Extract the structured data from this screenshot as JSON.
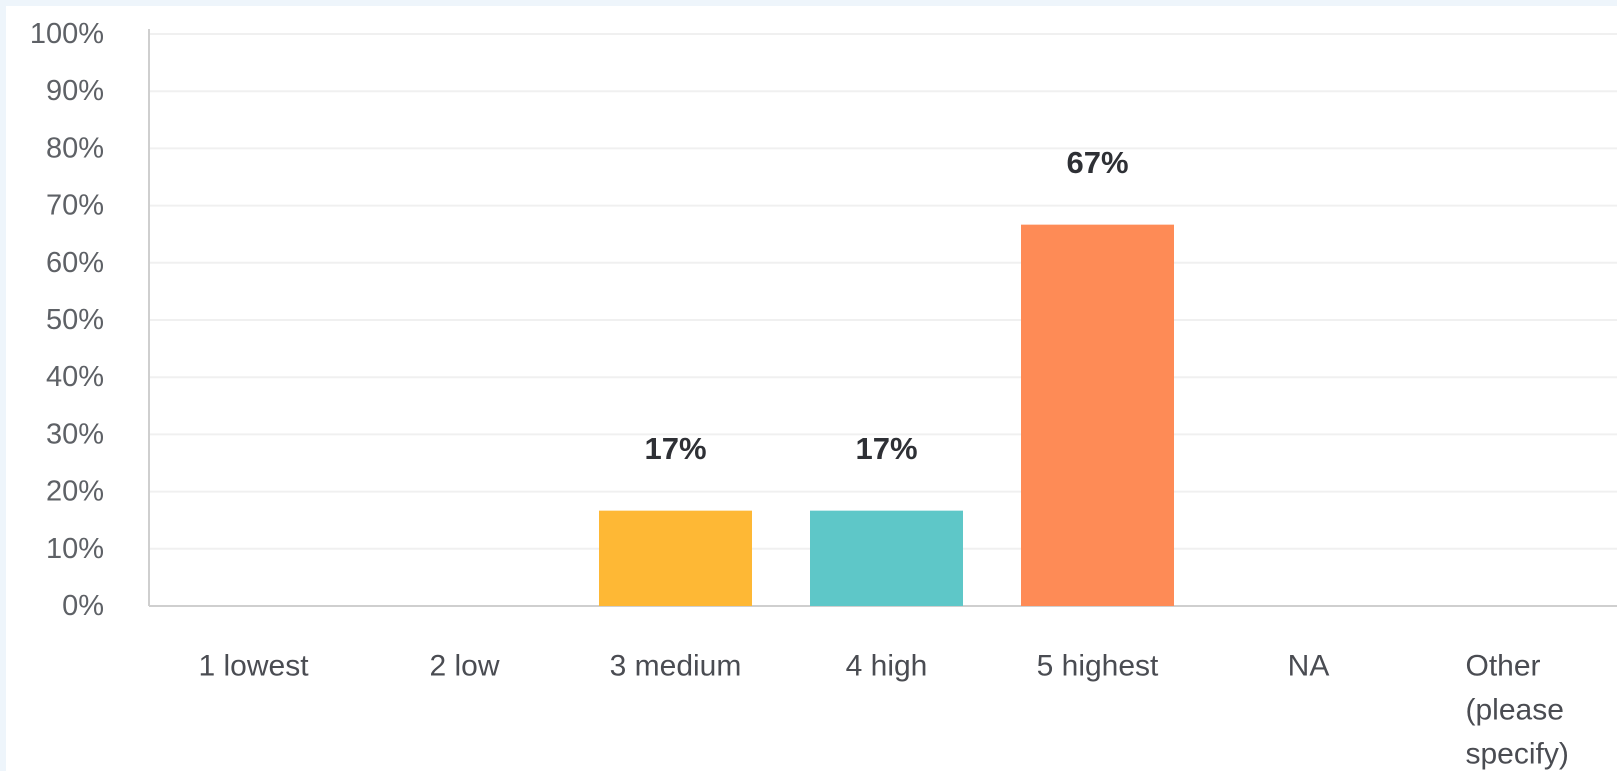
{
  "chart_data": {
    "type": "bar",
    "categories": [
      [
        "1 lowest"
      ],
      [
        "2 low"
      ],
      [
        "3 medium"
      ],
      [
        "4 high"
      ],
      [
        "5 highest"
      ],
      [
        "NA"
      ],
      [
        "Other",
        "(please",
        "specify)"
      ]
    ],
    "values": [
      0,
      0,
      16.67,
      16.67,
      66.67,
      0,
      0
    ],
    "data_labels": [
      "",
      "",
      "17%",
      "17%",
      "67%",
      "",
      ""
    ],
    "bar_colors": [
      "#6fc8a5",
      "#9ad17f",
      "#feb835",
      "#5ec7c8",
      "#fe8b56",
      "#a28ad9",
      "#f2669a"
    ],
    "ylim": [
      0,
      100
    ],
    "yticks": [
      "0%",
      "10%",
      "20%",
      "30%",
      "40%",
      "50%",
      "60%",
      "70%",
      "80%",
      "90%",
      "100%"
    ],
    "title": "",
    "xlabel": "",
    "ylabel": "",
    "grid": true,
    "grid_color": "#f0f0f0",
    "axis_color": "#cfcfcf"
  }
}
